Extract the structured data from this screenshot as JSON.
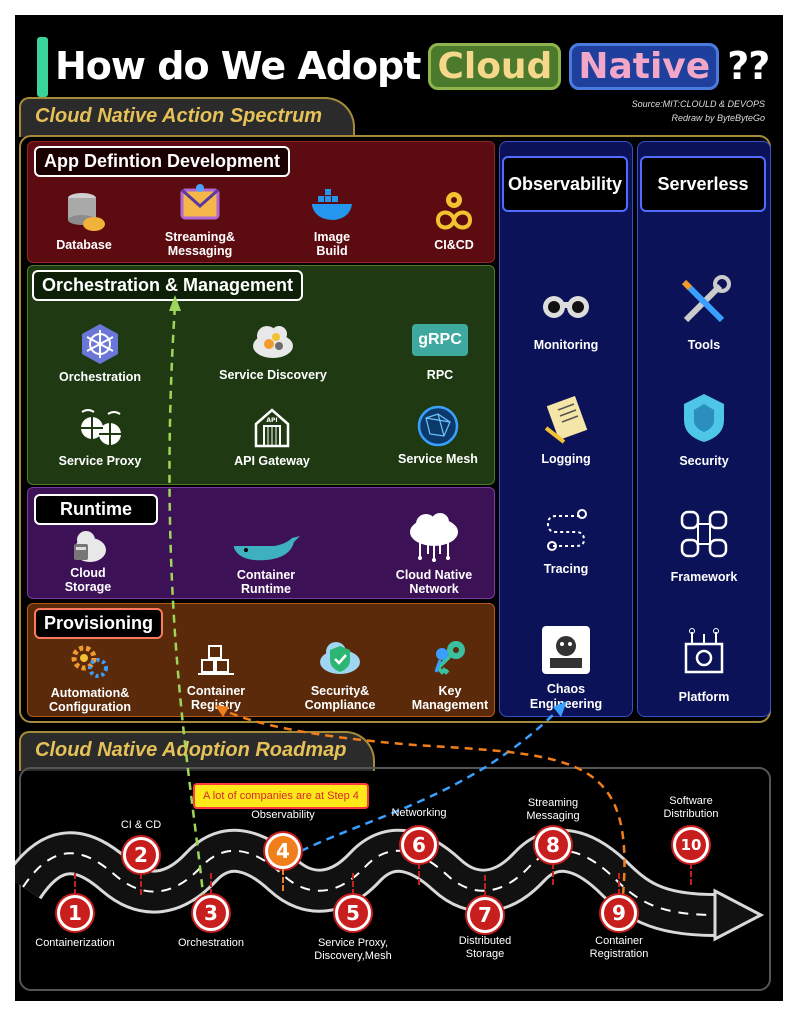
{
  "title": {
    "prefix": "How do We Adopt",
    "highlight1": "Cloud",
    "highlight2": "Native",
    "suffix": "??"
  },
  "source": {
    "line1": "Source:MIT:CLOULD & DEVOPS",
    "line2": "Redraw by ByteByteGo"
  },
  "spectrum": {
    "heading": "Cloud Native Action Spectrum",
    "app_definition": {
      "label": "App Defintion Development",
      "items": [
        "Database",
        "Streaming&\nMessaging",
        "Image\nBuild",
        "CI&CD"
      ]
    },
    "orchestration": {
      "label": "Orchestration & Management",
      "items": [
        "Orchestration",
        "Service Discovery",
        "RPC",
        "Service Proxy",
        "API Gateway",
        "Service Mesh"
      ]
    },
    "runtime": {
      "label": "Runtime",
      "items": [
        "Cloud\nStorage",
        "Container\nRuntime",
        "Cloud Native\nNetwork"
      ]
    },
    "provisioning": {
      "label": "Provisioning",
      "items": [
        "Automation&\nConfiguration",
        "Container\nRegistry",
        "Security&\nCompliance",
        "Key\nManagement"
      ]
    },
    "observability": {
      "label": "Observability",
      "items": [
        "Monitoring",
        "Logging",
        "Tracing",
        "Chaos\nEngineering"
      ]
    },
    "serverless": {
      "label": "Serverless",
      "items": [
        "Tools",
        "Security",
        "Framework",
        "Platform"
      ]
    },
    "rpc_badge": "gRPC"
  },
  "roadmap": {
    "heading": "Cloud Native Adoption Roadmap",
    "callout": "A lot of companies are at Step 4",
    "steps": [
      {
        "num": "1",
        "label": "Containerization"
      },
      {
        "num": "2",
        "label": "CI & CD"
      },
      {
        "num": "3",
        "label": "Orchestration"
      },
      {
        "num": "4",
        "label": "Observability"
      },
      {
        "num": "5",
        "label": "Service Proxy,\nDiscovery,Mesh"
      },
      {
        "num": "6",
        "label": "Networking"
      },
      {
        "num": "7",
        "label": "Distributed\nStorage"
      },
      {
        "num": "8",
        "label": "Streaming\nMessaging"
      },
      {
        "num": "9",
        "label": "Container\nRegistration"
      },
      {
        "num": "10",
        "label": "Software\nDistribution"
      }
    ]
  },
  "colors": {
    "app_panel": "#5c0b10",
    "orch_panel": "#1f3a12",
    "runtime_panel": "#3d1156",
    "prov_panel": "#5a2a0a",
    "column": "#0b1257",
    "step_red": "#c81e1e",
    "step_highlight": "#f07e1b",
    "accent_gold": "#e5c158"
  }
}
